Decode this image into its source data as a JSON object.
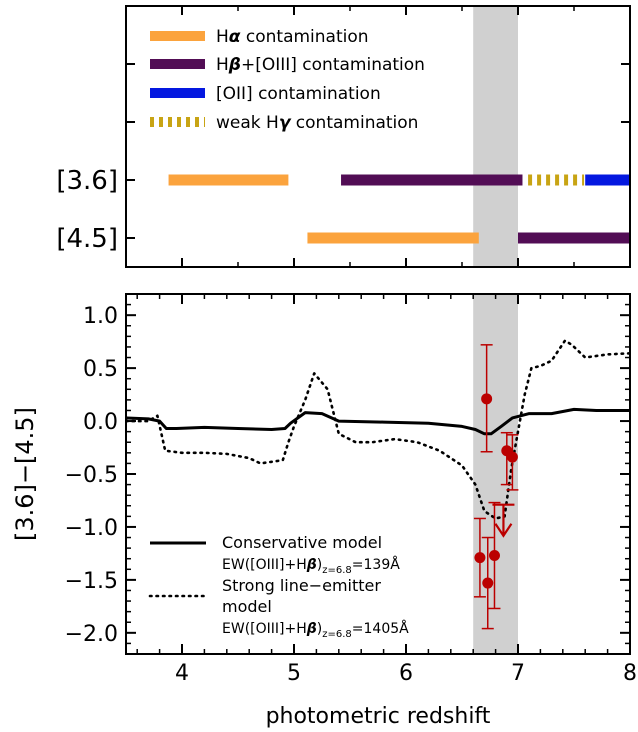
{
  "chart_data": [
    {
      "type": "range-bars",
      "xlim": [
        3.5,
        8.0
      ],
      "rows": [
        {
          "label": "[3.6]",
          "segments": [
            {
              "start": 3.88,
              "end": 4.95,
              "style": "halpha"
            },
            {
              "start": 5.42,
              "end": 7.04,
              "style": "hbeta"
            },
            {
              "start": 7.09,
              "end": 7.59,
              "style": "hgamma"
            },
            {
              "start": 7.6,
              "end": 8.0,
              "style": "oii"
            }
          ]
        },
        {
          "label": "[4.5]",
          "segments": [
            {
              "start": 5.12,
              "end": 6.65,
              "style": "halpha"
            },
            {
              "start": 7.0,
              "end": 8.0,
              "style": "hbeta"
            }
          ]
        }
      ],
      "legend": [
        {
          "style": "halpha",
          "pre": "H",
          "greek": "α",
          "post": " contamination"
        },
        {
          "style": "hbeta",
          "pre": "H",
          "greek": "β",
          "post": "+[OIII] contamination"
        },
        {
          "style": "oii",
          "pre": "[OII] contamination",
          "greek": "",
          "post": ""
        },
        {
          "style": "hgamma",
          "pre": "weak H",
          "greek": "γ",
          "post": " contamination"
        }
      ],
      "shaded_band": [
        6.6,
        7.0
      ]
    },
    {
      "type": "line",
      "xlabel": "photometric redshift",
      "ylabel": "[3.6]−[4.5]",
      "xlim": [
        3.5,
        8.0
      ],
      "ylim": [
        -2.2,
        1.2
      ],
      "xticks": [
        "4",
        "5",
        "6",
        "7",
        "8"
      ],
      "yticks": [
        "1.0",
        "0.5",
        "0.0",
        "−0.5",
        "−1.0",
        "−1.5",
        "−2.0"
      ],
      "shaded_band": [
        6.6,
        7.0
      ],
      "series": [
        {
          "name": "Conservative model",
          "style": "solid",
          "x": [
            3.5,
            3.7,
            3.8,
            3.86,
            3.95,
            4.2,
            4.5,
            4.8,
            4.92,
            4.97,
            5.1,
            5.25,
            5.4,
            5.8,
            6.2,
            6.5,
            6.62,
            6.7,
            6.76,
            6.85,
            6.95,
            7.1,
            7.3,
            7.5,
            7.7,
            8.0
          ],
          "y": [
            0.03,
            0.02,
            0.0,
            -0.07,
            -0.07,
            -0.06,
            -0.07,
            -0.08,
            -0.07,
            -0.02,
            0.08,
            0.07,
            0.0,
            -0.01,
            -0.02,
            -0.05,
            -0.08,
            -0.12,
            -0.12,
            -0.05,
            0.03,
            0.07,
            0.07,
            0.11,
            0.1,
            0.1
          ]
        },
        {
          "name": "Strong line-emitter model",
          "style": "dotted",
          "x": [
            3.5,
            3.7,
            3.78,
            3.85,
            4.0,
            4.2,
            4.4,
            4.6,
            4.7,
            4.9,
            4.95,
            5.0,
            5.1,
            5.18,
            5.3,
            5.4,
            5.55,
            5.7,
            5.9,
            6.1,
            6.3,
            6.5,
            6.62,
            6.7,
            6.8,
            6.88,
            6.94,
            7.0,
            7.06,
            7.12,
            7.2,
            7.3,
            7.42,
            7.48,
            7.6,
            7.8,
            8.0
          ],
          "y": [
            0.0,
            0.0,
            0.05,
            -0.28,
            -0.3,
            -0.3,
            -0.31,
            -0.35,
            -0.4,
            -0.37,
            -0.2,
            -0.05,
            0.2,
            0.45,
            0.3,
            -0.12,
            -0.2,
            -0.2,
            -0.17,
            -0.2,
            -0.28,
            -0.42,
            -0.6,
            -0.85,
            -0.92,
            -0.9,
            -0.45,
            -0.1,
            0.25,
            0.5,
            0.52,
            0.57,
            0.76,
            0.72,
            0.6,
            0.63,
            0.64
          ]
        }
      ],
      "points": [
        {
          "x": 6.66,
          "y": -1.29,
          "yerr_low": 0.37,
          "yerr_high": 0.37
        },
        {
          "x": 6.72,
          "y": 0.21,
          "yerr_low": 0.5,
          "yerr_high": 0.51
        },
        {
          "x": 6.73,
          "y": -1.53,
          "yerr_low": 0.43,
          "yerr_high": 0.43
        },
        {
          "x": 6.79,
          "y": -1.27,
          "yerr_low": 0.5,
          "yerr_high": 0.5
        },
        {
          "x": 6.9,
          "y": -0.28,
          "yerr_low": 0.32,
          "yerr_high": 0.17
        },
        {
          "x": 6.95,
          "y": -0.34,
          "yerr_low": 0.31,
          "yerr_high": 0.21
        }
      ],
      "upper_limits": [
        {
          "x": 6.87,
          "y": -0.79
        }
      ],
      "legend": [
        {
          "style": "solid",
          "title": "Conservative model",
          "ew_pre": "EW([OIII]+H",
          "ew_greek": "β",
          "ew_sub": "z=6.8",
          "ew_value": "=139Å"
        },
        {
          "style": "dotted",
          "title": "Strong line−emitter",
          "title2": "model",
          "ew_pre": "EW([OIII]+H",
          "ew_greek": "β",
          "ew_sub": "z=6.8",
          "ew_value": "=1405Å"
        }
      ]
    }
  ],
  "colors": {
    "halpha": "#fba33d",
    "hbeta": "#520d55",
    "oii": "#0418e0",
    "hgamma": "#c8a414",
    "shade": "#d0d0d0",
    "points": "#bb0000"
  }
}
